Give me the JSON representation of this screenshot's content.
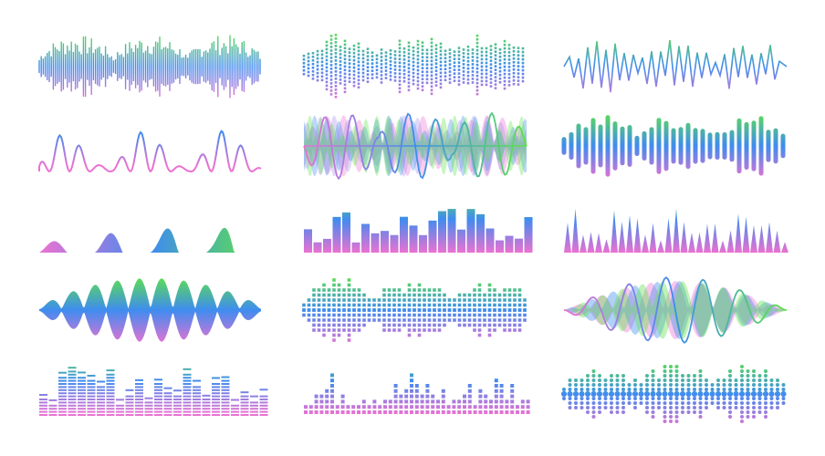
{
  "colors": {
    "background": "#ffffff",
    "green": "#5ee24a",
    "blue": "#3f8cef",
    "pink": "#ea72d2",
    "lavender": "#a98ee8"
  },
  "waveforms": [
    {
      "style": "dense-spikes"
    },
    {
      "style": "dotted-bars"
    },
    {
      "style": "zigzag-line"
    },
    {
      "style": "peaks-line"
    },
    {
      "style": "overlapping-sines"
    },
    {
      "style": "rounded-bars"
    },
    {
      "style": "filled-hills"
    },
    {
      "style": "equalizer-bars"
    },
    {
      "style": "triangle-spikes"
    },
    {
      "style": "filled-envelope"
    },
    {
      "style": "square-dot-grid"
    },
    {
      "style": "filled-lobes-line"
    },
    {
      "style": "striped-equalizer"
    },
    {
      "style": "square-dot-stacks"
    },
    {
      "style": "dot-columns"
    }
  ]
}
